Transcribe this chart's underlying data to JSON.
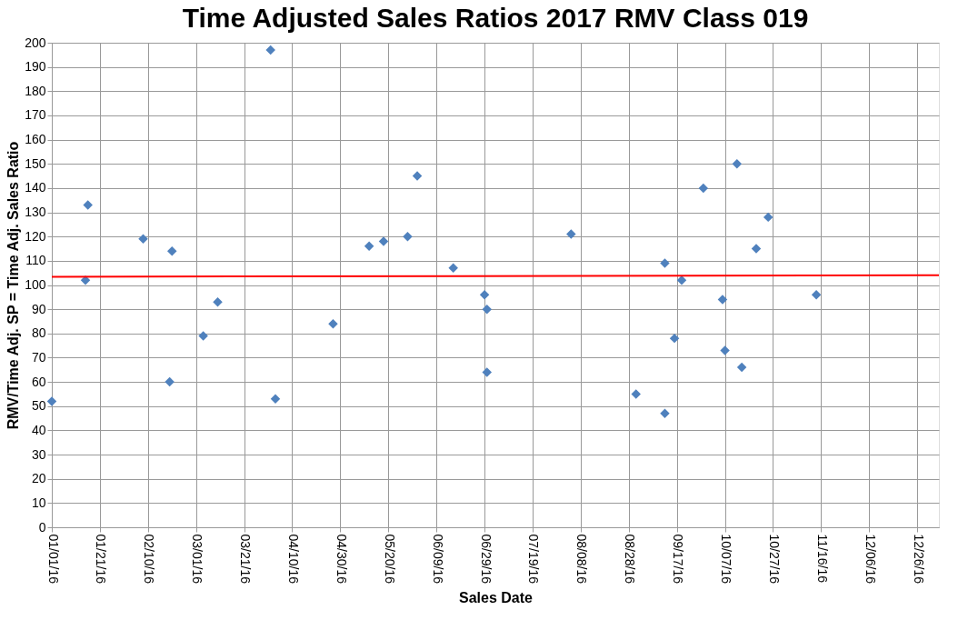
{
  "chart_data": {
    "type": "scatter",
    "title": "Time Adjusted Sales Ratios 2017 RMV Class 019",
    "xlabel": "Sales Date",
    "ylabel": "RMV/Time Adj. SP =  Time Adj. Sales Ratio",
    "x": [
      "2016-01-01",
      "2016-01-15",
      "2016-01-16",
      "2016-02-08",
      "2016-02-20",
      "2016-02-19",
      "2016-03-04",
      "2016-03-10",
      "2016-04-01",
      "2016-04-03",
      "2016-04-27",
      "2016-05-12",
      "2016-05-18",
      "2016-05-28",
      "2016-06-01",
      "2016-06-16",
      "2016-06-29",
      "2016-06-30",
      "2016-06-30",
      "2016-08-04",
      "2016-08-31",
      "2016-09-12",
      "2016-09-12",
      "2016-09-16",
      "2016-09-19",
      "2016-09-28",
      "2016-10-06",
      "2016-10-07",
      "2016-10-12",
      "2016-10-14",
      "2016-10-20",
      "2016-10-25",
      "2016-11-14"
    ],
    "series": [
      {
        "color": "#4f81bd",
        "values": [
          52,
          102,
          133,
          119,
          114,
          60,
          79,
          93,
          197,
          53,
          84,
          116,
          118,
          120,
          145,
          107,
          96,
          90,
          64,
          121,
          55,
          109,
          47,
          78,
          102,
          140,
          94,
          73,
          150,
          66,
          115,
          128,
          96
        ]
      },
      {
        "type": "line",
        "color": "#ff0000",
        "marker": "none",
        "line_style": "solid",
        "x": [
          "2016-01-01",
          "2017-01-04"
        ],
        "values": [
          103.4,
          104
        ]
      }
    ],
    "marker": "diamond",
    "grid": true,
    "xlim": [
      "2016-01-01",
      "2017-01-04"
    ],
    "ylim": [
      0,
      200
    ],
    "xticks": [
      {
        "value": "2016-01-01",
        "label": "01/01/16"
      },
      {
        "value": "2016-01-21",
        "label": "01/21/16"
      },
      {
        "value": "2016-02-10",
        "label": "02/10/16"
      },
      {
        "value": "2016-03-01",
        "label": "03/01/16"
      },
      {
        "value": "2016-03-21",
        "label": "03/21/16"
      },
      {
        "value": "2016-04-10",
        "label": "04/10/16"
      },
      {
        "value": "2016-04-30",
        "label": "04/30/16"
      },
      {
        "value": "2016-05-20",
        "label": "05/20/16"
      },
      {
        "value": "2016-06-09",
        "label": "06/09/16"
      },
      {
        "value": "2016-06-29",
        "label": "06/29/16"
      },
      {
        "value": "2016-07-19",
        "label": "07/19/16"
      },
      {
        "value": "2016-08-08",
        "label": "08/08/16"
      },
      {
        "value": "2016-08-28",
        "label": "08/28/16"
      },
      {
        "value": "2016-09-17",
        "label": "09/17/16"
      },
      {
        "value": "2016-10-07",
        "label": "10/07/16"
      },
      {
        "value": "2016-10-27",
        "label": "10/27/16"
      },
      {
        "value": "2016-11-16",
        "label": "11/16/16"
      },
      {
        "value": "2016-12-06",
        "label": "12/06/16"
      },
      {
        "value": "2016-12-26",
        "label": "12/26/16"
      }
    ],
    "yticks": [
      0,
      10,
      20,
      30,
      40,
      50,
      60,
      70,
      80,
      90,
      100,
      110,
      120,
      130,
      140,
      150,
      160,
      170,
      180,
      190,
      200
    ]
  }
}
